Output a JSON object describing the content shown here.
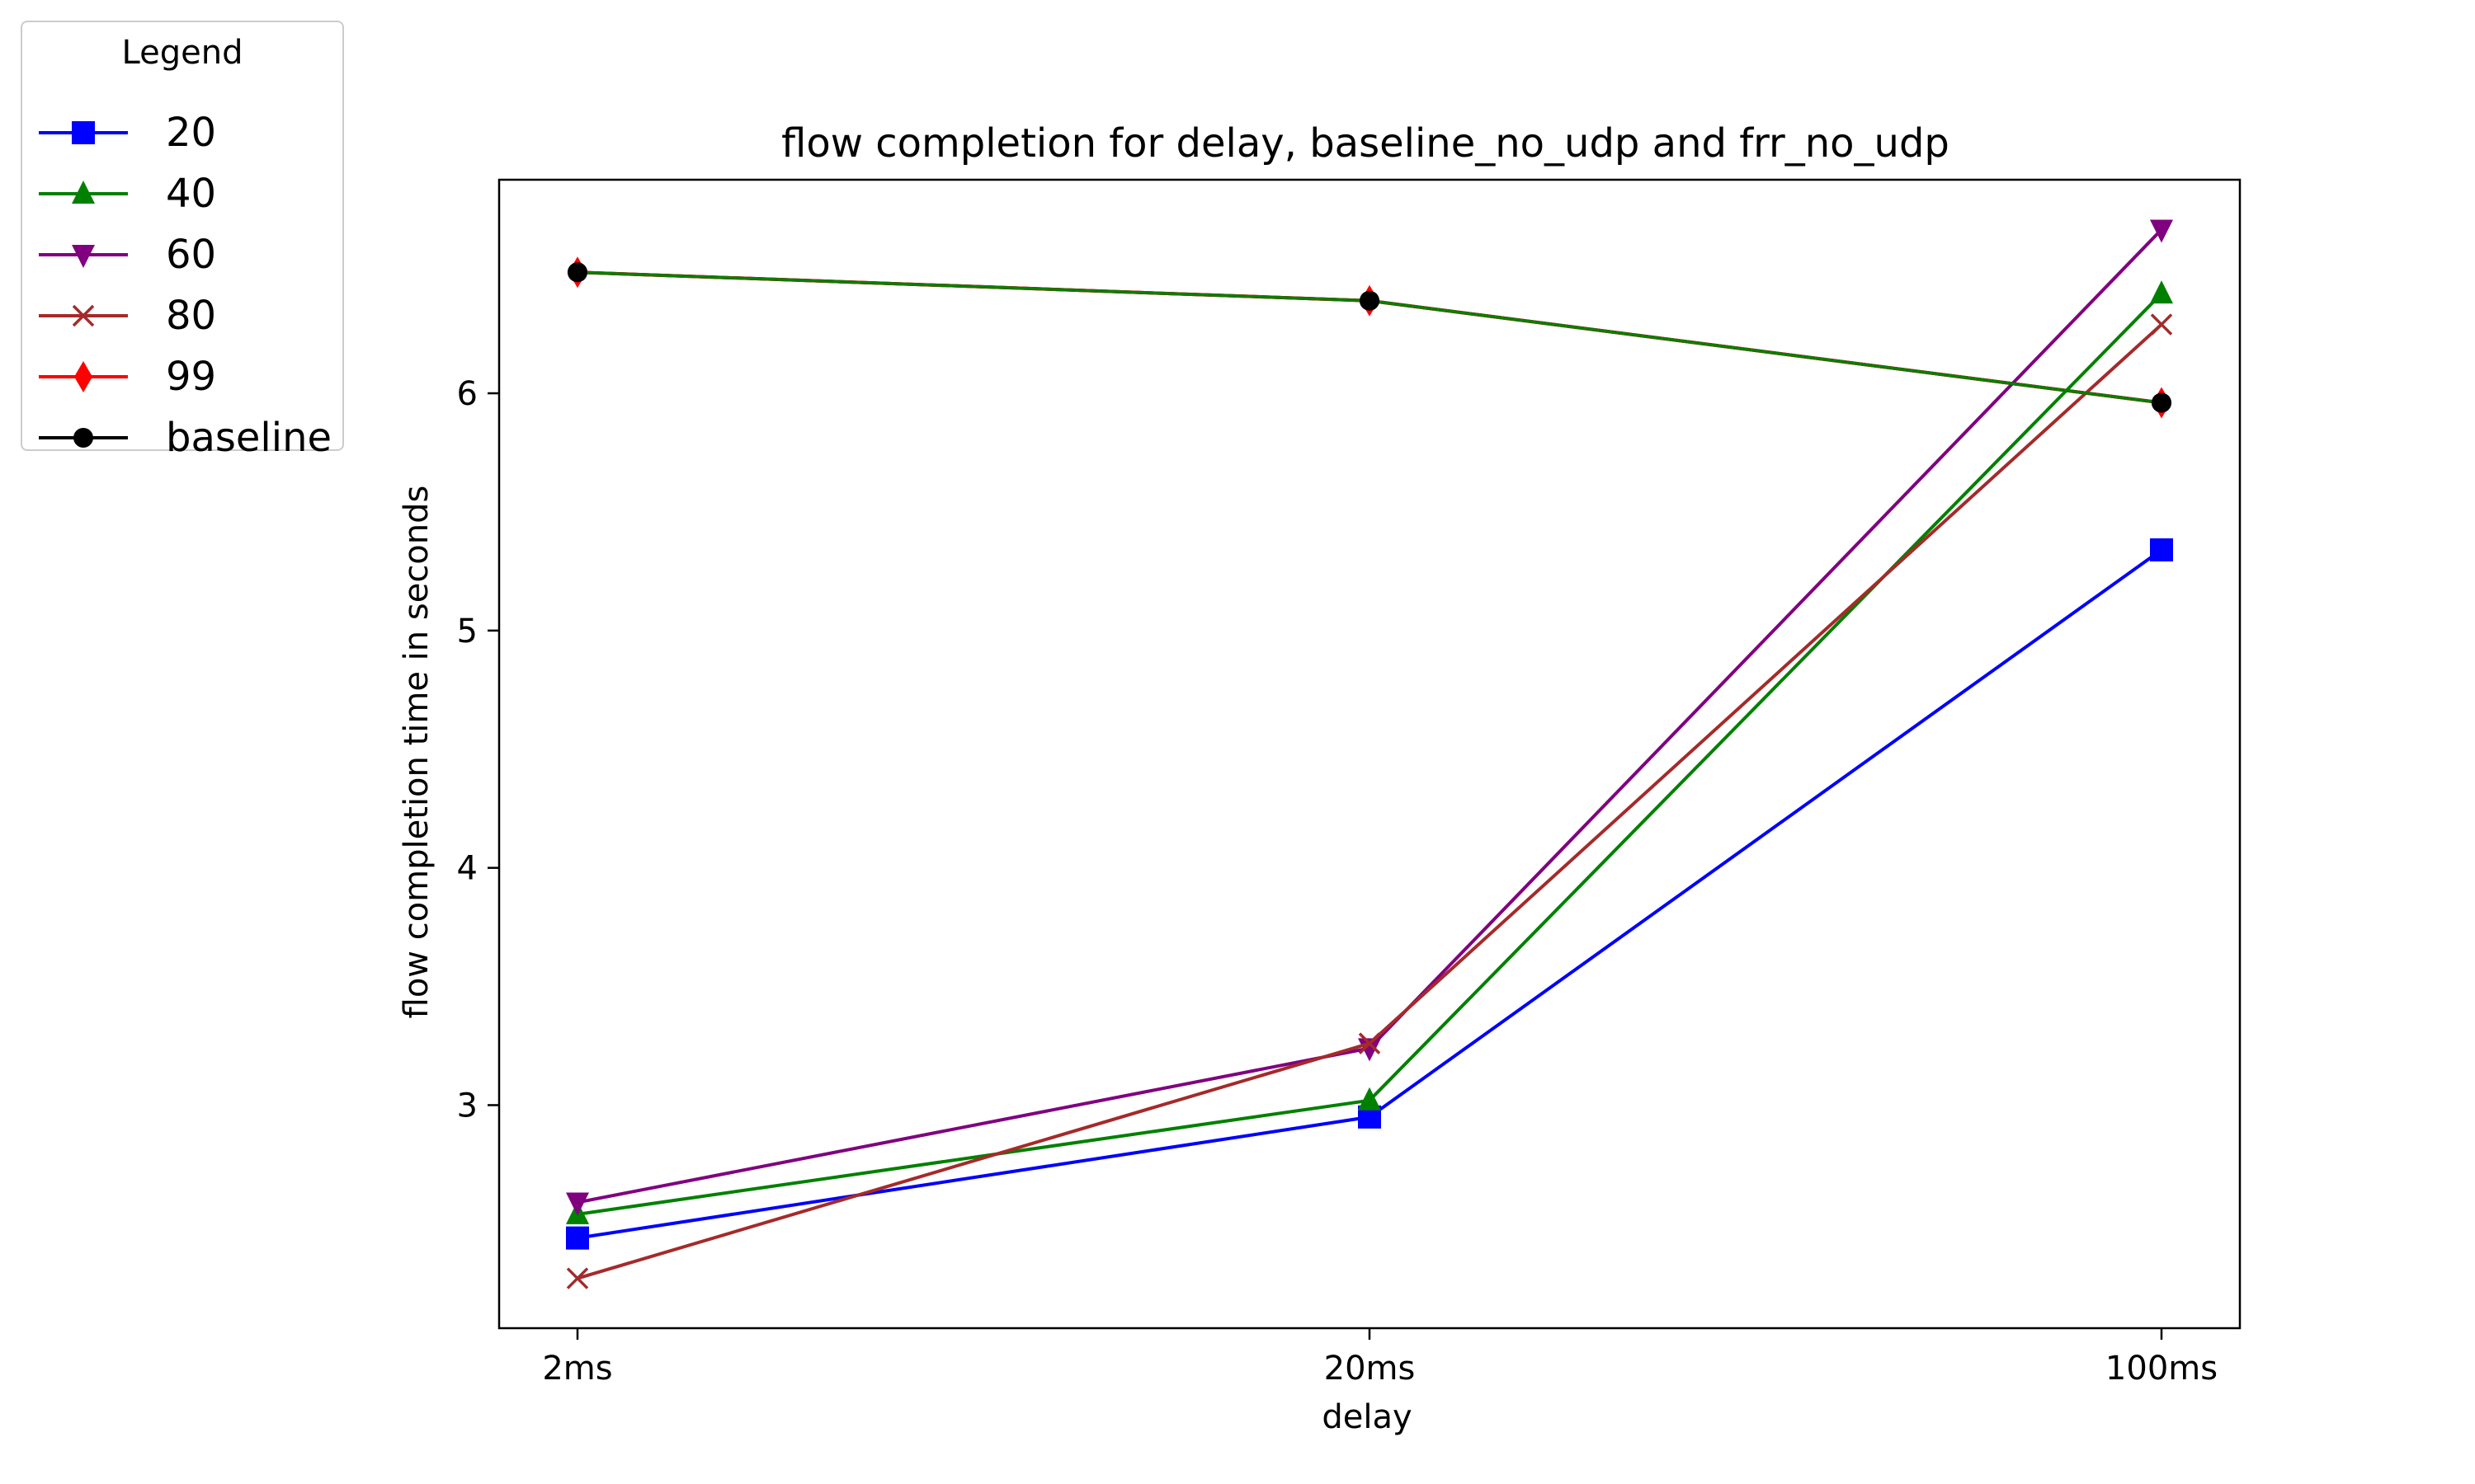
{
  "chart_data": {
    "type": "line",
    "title": "flow completion for delay, baseline_no_udp and frr_no_udp",
    "xlabel": "delay",
    "ylabel": "flow completion time in seconds",
    "categories": [
      "2ms",
      "20ms",
      "100ms"
    ],
    "ylim": [
      2.06,
      6.9
    ],
    "yticks": [
      3,
      4,
      5,
      6
    ],
    "grid": false,
    "legend": {
      "title": "Legend",
      "placement": "outside-top-left"
    },
    "series": [
      {
        "name": "20",
        "color": "#0000ff",
        "marker": "square",
        "values": [
          2.44,
          2.95,
          5.34
        ]
      },
      {
        "name": "40",
        "color": "#008000",
        "marker": "triangle-up",
        "values": [
          2.54,
          3.02,
          6.42
        ]
      },
      {
        "name": "60",
        "color": "#800080",
        "marker": "triangle-down",
        "values": [
          2.59,
          3.24,
          6.69
        ]
      },
      {
        "name": "80",
        "color": "#a52a2a",
        "marker": "x",
        "values": [
          2.27,
          3.26,
          6.29
        ]
      },
      {
        "name": "99",
        "color": "#ff0000",
        "marker": "diamond",
        "values": [
          6.51,
          6.39,
          5.96
        ]
      },
      {
        "name": "baseline",
        "color": "#000000",
        "marker": "circle",
        "values": [
          6.51,
          6.39,
          5.96
        ]
      }
    ],
    "overlay": {
      "color": "#008000",
      "values": [
        6.51,
        6.39,
        5.96
      ]
    }
  }
}
